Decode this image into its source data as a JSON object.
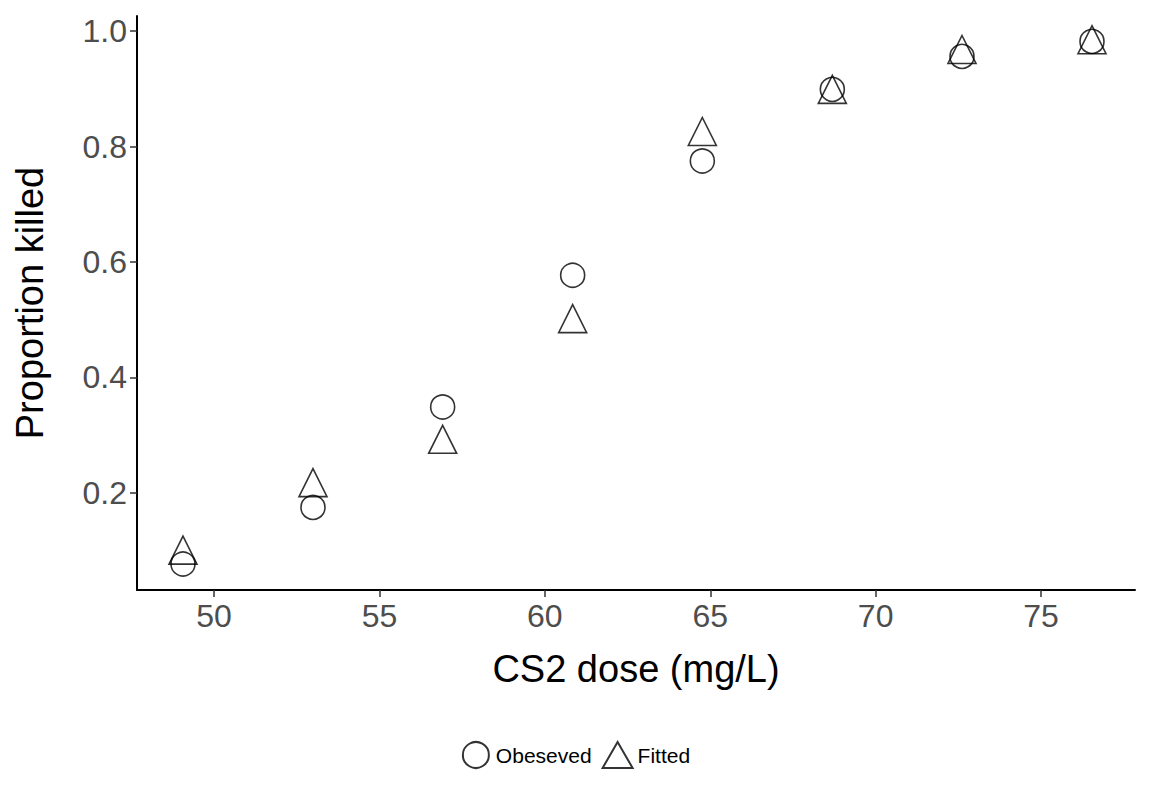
{
  "chart_data": {
    "type": "scatter",
    "x_label": "CS2 dose (mg/L)",
    "y_label": "Proportion killed",
    "x": [
      49.06,
      52.99,
      56.91,
      60.84,
      64.76,
      68.69,
      72.61,
      76.54
    ],
    "series": [
      {
        "name": "Obeseved",
        "color": "#000000",
        "marker": "circle",
        "values": [
          0.077,
          0.175,
          0.349,
          0.577,
          0.775,
          0.899,
          0.956,
          0.982
        ]
      },
      {
        "name": "Fitted",
        "color": "#000000",
        "marker": "triangle",
        "values": [
          0.101,
          0.218,
          0.293,
          0.502,
          0.826,
          0.899,
          0.968,
          0.985
        ]
      }
    ],
    "xlim": [
      47.67,
      77.84
    ],
    "xticks": [
      50,
      55,
      60,
      65,
      70,
      75
    ],
    "ylim": [
      0.032,
      1.026
    ],
    "yticks": [
      0.2,
      0.4,
      0.6,
      0.8,
      {
        "value": 1,
        "label": "1.0"
      }
    ],
    "grid": false,
    "legend": "bottom"
  }
}
